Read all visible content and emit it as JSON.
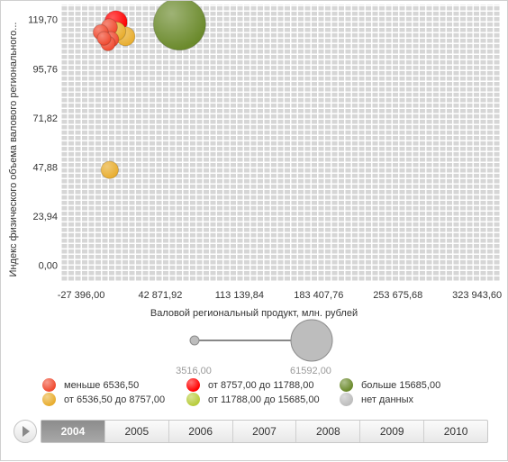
{
  "chart_data": {
    "type": "bubble",
    "title": "",
    "xlabel": "Валовой региональный продукт, млн. рублей",
    "ylabel": "Индекс физического объема валового регионального...",
    "x_ticks": [
      "-27 396,00",
      "42 871,92",
      "113 139,84",
      "183 407,76",
      "253 675,68",
      "323 943,60"
    ],
    "y_ticks": [
      "0,00",
      "23,94",
      "47,88",
      "71,82",
      "95,76",
      "119,70"
    ],
    "xlim": [
      -45000,
      345000
    ],
    "ylim": [
      -8,
      127
    ],
    "size_legend": {
      "min_label": "3516,00",
      "max_label": "61592,00",
      "min_value": 3516,
      "max_value": 61592
    },
    "points": [
      {
        "x": 60000,
        "y": 117.5,
        "size": 61592,
        "color": "#6b8a2c",
        "group": "больше 15685,00"
      },
      {
        "x": 3500,
        "y": 118.5,
        "size": 11500,
        "color": "#ff0000",
        "group": "от 8757,00 до 11788,00"
      },
      {
        "x": 12000,
        "y": 111.5,
        "size": 8200,
        "color": "#e8ad2e",
        "group": "от 6536,50 до 8757,00"
      },
      {
        "x": 4000,
        "y": 114.0,
        "size": 7800,
        "color": "#e8ad2e",
        "group": "от 6536,50 до 8757,00"
      },
      {
        "x": -2500,
        "y": 116.0,
        "size": 6200,
        "color": "#f04a30",
        "group": "меньше 6536,50"
      },
      {
        "x": -10000,
        "y": 113.5,
        "size": 5200,
        "color": "#f04a30",
        "group": "меньше 6536,50"
      },
      {
        "x": -3500,
        "y": 108.0,
        "size": 4800,
        "color": "#f04a30",
        "group": "меньше 6536,50"
      },
      {
        "x": -7000,
        "y": 110.5,
        "size": 4200,
        "color": "#f04a30",
        "group": "меньше 6536,50"
      },
      {
        "x": -900,
        "y": 110.0,
        "size": 5500,
        "color": "#f04a30",
        "group": "меньше 6536,50"
      },
      {
        "x": -2000,
        "y": 46.5,
        "size": 6900,
        "color": "#e8ad2e",
        "group": "от 6536,50 до 8757,00"
      }
    ],
    "legend": [
      {
        "label": "меньше 6536,50",
        "color": "#f04a30"
      },
      {
        "label": "от 8757,00 до 11788,00",
        "color": "#ff0000"
      },
      {
        "label": "больше 15685,00",
        "color": "#6b8a2c"
      },
      {
        "label": "от 6536,50 до 8757,00",
        "color": "#e8ad2e"
      },
      {
        "label": "от 11788,00 до 15685,00",
        "color": "#b8cc3c"
      },
      {
        "label": "нет данных",
        "color": "#bdbdbd"
      }
    ],
    "grid": true
  },
  "timeline": {
    "years": [
      "2004",
      "2005",
      "2006",
      "2007",
      "2008",
      "2009",
      "2010"
    ],
    "active_year": "2004"
  }
}
